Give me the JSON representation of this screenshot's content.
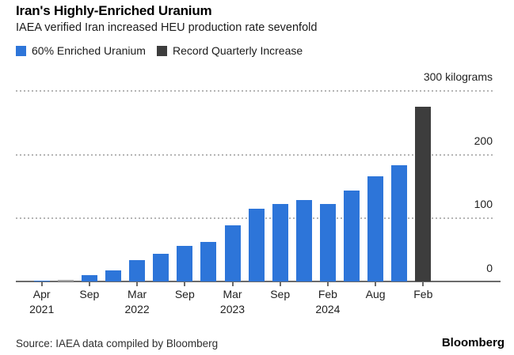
{
  "header": {
    "title": "Iran's Highly-Enriched Uranium",
    "subtitle": "IAEA verified Iran increased HEU production rate sevenfold"
  },
  "chart_data": {
    "type": "bar",
    "title": "Iran's Highly-Enriched Uranium",
    "subtitle": "IAEA verified Iran increased HEU production rate sevenfold",
    "unit": "kilograms",
    "ylim": [
      0,
      300
    ],
    "grid": "horizontal-dotted",
    "legend_position": "top-left",
    "legend": [
      {
        "label": "60% Enriched Uranium",
        "color": "#2d75d9"
      },
      {
        "label": "Record Quarterly Increase",
        "color": "#3d3d3d"
      }
    ],
    "values": [
      1,
      2.5,
      10,
      17.7,
      33.2,
      43.1,
      55.6,
      62.3,
      87.5,
      114.1,
      121.6,
      128.3,
      121.5,
      142.1,
      164.7,
      182.3,
      274.8
    ],
    "bar_color_default": "#2d75d9",
    "bar_color_overrides": {
      "1": "#a6a6a6",
      "16": "#3d3d3d"
    },
    "y_ticks": [
      {
        "value": 300,
        "label": "300 kilograms"
      },
      {
        "value": 200,
        "label": "200"
      },
      {
        "value": 100,
        "label": "100"
      },
      {
        "value": 0,
        "label": "0"
      }
    ],
    "x_ticks": [
      {
        "bar_index": 0,
        "month": "Apr",
        "year": "2021"
      },
      {
        "bar_index": 2,
        "month": "Sep"
      },
      {
        "bar_index": 4,
        "month": "Mar",
        "year": "2022"
      },
      {
        "bar_index": 6,
        "month": "Sep"
      },
      {
        "bar_index": 8,
        "month": "Mar",
        "year": "2023"
      },
      {
        "bar_index": 10,
        "month": "Sep"
      },
      {
        "bar_index": 12,
        "month": "Feb",
        "year": "2024"
      },
      {
        "bar_index": 14,
        "month": "Aug"
      },
      {
        "bar_index": 16,
        "month": "Feb"
      }
    ]
  },
  "footer": {
    "source": "Source: IAEA data compiled by Bloomberg",
    "logo": "Bloomberg"
  }
}
